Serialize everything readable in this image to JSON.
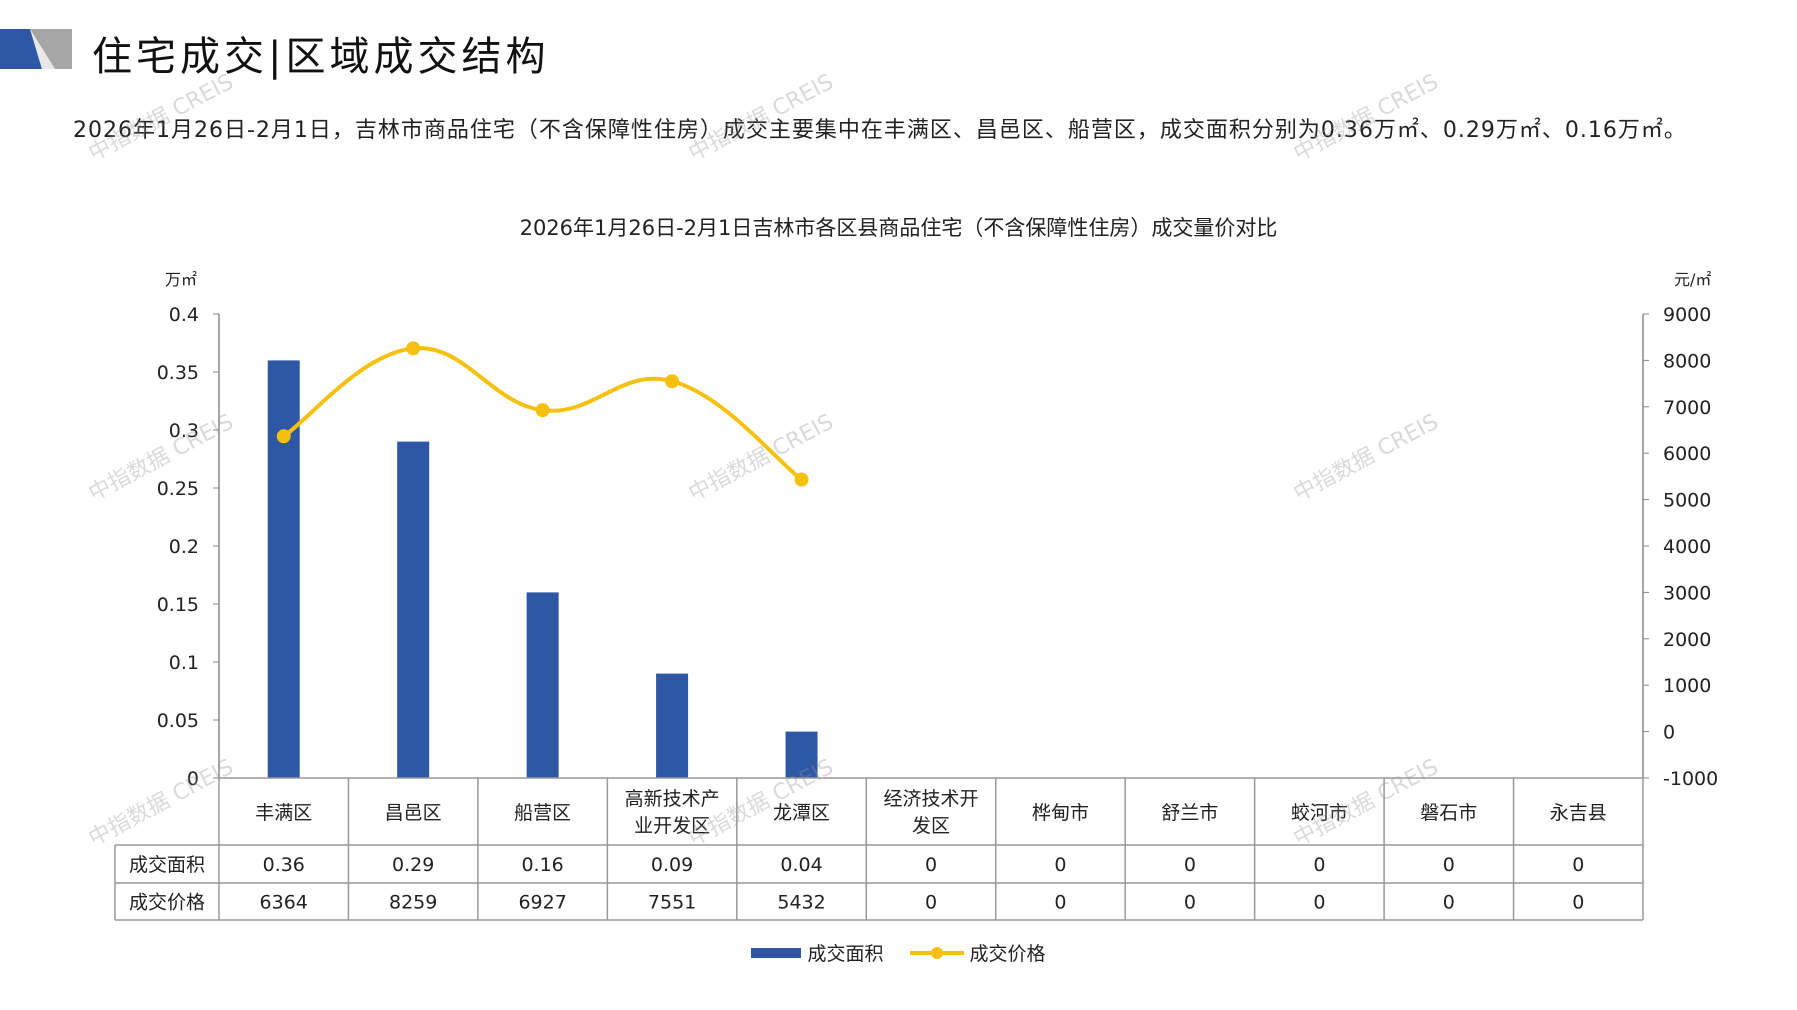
{
  "header": {
    "title": "住宅成交|区域成交结构"
  },
  "summary": "2026年1月26日-2月1日，吉林市商品住宅（不含保障性住房）成交主要集中在丰满区、昌邑区、船营区，成交面积分别为0.36万㎡、0.29万㎡、0.16万㎡。",
  "watermark": "中指数据 CREIS",
  "colors": {
    "bar": "#2E58A6",
    "line": "#F5C10E",
    "grid": "#888888"
  },
  "chart_data": {
    "type": "bar",
    "title": "2026年1月26日-2月1日吉林市各区县商品住宅（不含保障性住房）成交量价对比",
    "ylabel": "万㎡",
    "y2label": "元/㎡",
    "ylim": [
      0,
      0.4
    ],
    "y2lim": [
      -1000,
      9000
    ],
    "yticks": [
      "0",
      "0.05",
      "0.1",
      "0.15",
      "0.2",
      "0.25",
      "0.3",
      "0.35",
      "0.4"
    ],
    "y2ticks": [
      "-1000",
      "0",
      "1000",
      "2000",
      "3000",
      "4000",
      "5000",
      "6000",
      "7000",
      "8000",
      "9000"
    ],
    "categories": [
      "丰满区",
      "昌邑区",
      "船营区",
      "高新技术产业开发区",
      "龙潭区",
      "经济技术开发区",
      "桦甸市",
      "舒兰市",
      "蛟河市",
      "磐石市",
      "永吉县"
    ],
    "series": [
      {
        "name": "成交面积",
        "type": "bar",
        "axis": "left",
        "values": [
          0.36,
          0.29,
          0.16,
          0.09,
          0.04,
          0,
          0,
          0,
          0,
          0,
          0
        ],
        "labels": [
          "0.36",
          "0.29",
          "0.16",
          "0.09",
          "0.04",
          "0",
          "0",
          "0",
          "0",
          "0",
          "0"
        ]
      },
      {
        "name": "成交价格",
        "type": "line",
        "axis": "right",
        "values": [
          6364,
          8259,
          6927,
          7551,
          5432,
          0,
          0,
          0,
          0,
          0,
          0
        ],
        "labels": [
          "6364",
          "8259",
          "6927",
          "7551",
          "5432",
          "0",
          "0",
          "0",
          "0",
          "0",
          "0"
        ]
      }
    ],
    "legend_position": "bottom"
  }
}
